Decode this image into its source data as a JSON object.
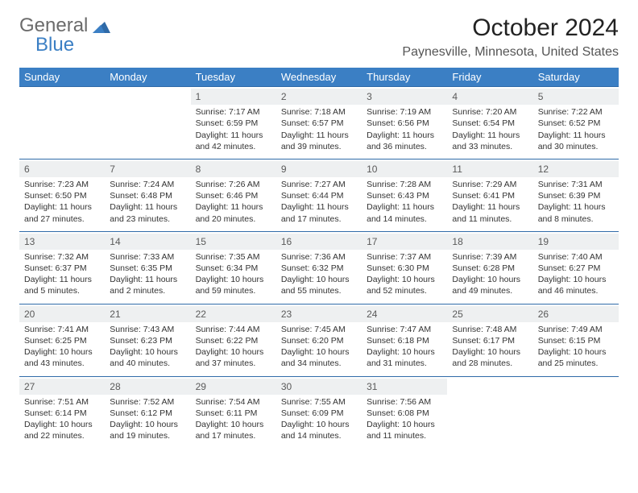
{
  "logo": {
    "text1": "General",
    "text2": "Blue"
  },
  "title": "October 2024",
  "location": "Paynesville, Minnesota, United States",
  "colors": {
    "header_bg": "#3b7fc4",
    "header_text": "#ffffff",
    "row_border": "#2f6aa8",
    "daynum_bg": "#eef0f1",
    "page_bg": "#ffffff",
    "logo_gray": "#6b6b6b",
    "logo_blue": "#3b7fc4"
  },
  "dayHeaders": [
    "Sunday",
    "Monday",
    "Tuesday",
    "Wednesday",
    "Thursday",
    "Friday",
    "Saturday"
  ],
  "weeks": [
    [
      null,
      null,
      {
        "num": "1",
        "sunrise": "Sunrise: 7:17 AM",
        "sunset": "Sunset: 6:59 PM",
        "day1": "Daylight: 11 hours",
        "day2": "and 42 minutes."
      },
      {
        "num": "2",
        "sunrise": "Sunrise: 7:18 AM",
        "sunset": "Sunset: 6:57 PM",
        "day1": "Daylight: 11 hours",
        "day2": "and 39 minutes."
      },
      {
        "num": "3",
        "sunrise": "Sunrise: 7:19 AM",
        "sunset": "Sunset: 6:56 PM",
        "day1": "Daylight: 11 hours",
        "day2": "and 36 minutes."
      },
      {
        "num": "4",
        "sunrise": "Sunrise: 7:20 AM",
        "sunset": "Sunset: 6:54 PM",
        "day1": "Daylight: 11 hours",
        "day2": "and 33 minutes."
      },
      {
        "num": "5",
        "sunrise": "Sunrise: 7:22 AM",
        "sunset": "Sunset: 6:52 PM",
        "day1": "Daylight: 11 hours",
        "day2": "and 30 minutes."
      }
    ],
    [
      {
        "num": "6",
        "sunrise": "Sunrise: 7:23 AM",
        "sunset": "Sunset: 6:50 PM",
        "day1": "Daylight: 11 hours",
        "day2": "and 27 minutes."
      },
      {
        "num": "7",
        "sunrise": "Sunrise: 7:24 AM",
        "sunset": "Sunset: 6:48 PM",
        "day1": "Daylight: 11 hours",
        "day2": "and 23 minutes."
      },
      {
        "num": "8",
        "sunrise": "Sunrise: 7:26 AM",
        "sunset": "Sunset: 6:46 PM",
        "day1": "Daylight: 11 hours",
        "day2": "and 20 minutes."
      },
      {
        "num": "9",
        "sunrise": "Sunrise: 7:27 AM",
        "sunset": "Sunset: 6:44 PM",
        "day1": "Daylight: 11 hours",
        "day2": "and 17 minutes."
      },
      {
        "num": "10",
        "sunrise": "Sunrise: 7:28 AM",
        "sunset": "Sunset: 6:43 PM",
        "day1": "Daylight: 11 hours",
        "day2": "and 14 minutes."
      },
      {
        "num": "11",
        "sunrise": "Sunrise: 7:29 AM",
        "sunset": "Sunset: 6:41 PM",
        "day1": "Daylight: 11 hours",
        "day2": "and 11 minutes."
      },
      {
        "num": "12",
        "sunrise": "Sunrise: 7:31 AM",
        "sunset": "Sunset: 6:39 PM",
        "day1": "Daylight: 11 hours",
        "day2": "and 8 minutes."
      }
    ],
    [
      {
        "num": "13",
        "sunrise": "Sunrise: 7:32 AM",
        "sunset": "Sunset: 6:37 PM",
        "day1": "Daylight: 11 hours",
        "day2": "and 5 minutes."
      },
      {
        "num": "14",
        "sunrise": "Sunrise: 7:33 AM",
        "sunset": "Sunset: 6:35 PM",
        "day1": "Daylight: 11 hours",
        "day2": "and 2 minutes."
      },
      {
        "num": "15",
        "sunrise": "Sunrise: 7:35 AM",
        "sunset": "Sunset: 6:34 PM",
        "day1": "Daylight: 10 hours",
        "day2": "and 59 minutes."
      },
      {
        "num": "16",
        "sunrise": "Sunrise: 7:36 AM",
        "sunset": "Sunset: 6:32 PM",
        "day1": "Daylight: 10 hours",
        "day2": "and 55 minutes."
      },
      {
        "num": "17",
        "sunrise": "Sunrise: 7:37 AM",
        "sunset": "Sunset: 6:30 PM",
        "day1": "Daylight: 10 hours",
        "day2": "and 52 minutes."
      },
      {
        "num": "18",
        "sunrise": "Sunrise: 7:39 AM",
        "sunset": "Sunset: 6:28 PM",
        "day1": "Daylight: 10 hours",
        "day2": "and 49 minutes."
      },
      {
        "num": "19",
        "sunrise": "Sunrise: 7:40 AM",
        "sunset": "Sunset: 6:27 PM",
        "day1": "Daylight: 10 hours",
        "day2": "and 46 minutes."
      }
    ],
    [
      {
        "num": "20",
        "sunrise": "Sunrise: 7:41 AM",
        "sunset": "Sunset: 6:25 PM",
        "day1": "Daylight: 10 hours",
        "day2": "and 43 minutes."
      },
      {
        "num": "21",
        "sunrise": "Sunrise: 7:43 AM",
        "sunset": "Sunset: 6:23 PM",
        "day1": "Daylight: 10 hours",
        "day2": "and 40 minutes."
      },
      {
        "num": "22",
        "sunrise": "Sunrise: 7:44 AM",
        "sunset": "Sunset: 6:22 PM",
        "day1": "Daylight: 10 hours",
        "day2": "and 37 minutes."
      },
      {
        "num": "23",
        "sunrise": "Sunrise: 7:45 AM",
        "sunset": "Sunset: 6:20 PM",
        "day1": "Daylight: 10 hours",
        "day2": "and 34 minutes."
      },
      {
        "num": "24",
        "sunrise": "Sunrise: 7:47 AM",
        "sunset": "Sunset: 6:18 PM",
        "day1": "Daylight: 10 hours",
        "day2": "and 31 minutes."
      },
      {
        "num": "25",
        "sunrise": "Sunrise: 7:48 AM",
        "sunset": "Sunset: 6:17 PM",
        "day1": "Daylight: 10 hours",
        "day2": "and 28 minutes."
      },
      {
        "num": "26",
        "sunrise": "Sunrise: 7:49 AM",
        "sunset": "Sunset: 6:15 PM",
        "day1": "Daylight: 10 hours",
        "day2": "and 25 minutes."
      }
    ],
    [
      {
        "num": "27",
        "sunrise": "Sunrise: 7:51 AM",
        "sunset": "Sunset: 6:14 PM",
        "day1": "Daylight: 10 hours",
        "day2": "and 22 minutes."
      },
      {
        "num": "28",
        "sunrise": "Sunrise: 7:52 AM",
        "sunset": "Sunset: 6:12 PM",
        "day1": "Daylight: 10 hours",
        "day2": "and 19 minutes."
      },
      {
        "num": "29",
        "sunrise": "Sunrise: 7:54 AM",
        "sunset": "Sunset: 6:11 PM",
        "day1": "Daylight: 10 hours",
        "day2": "and 17 minutes."
      },
      {
        "num": "30",
        "sunrise": "Sunrise: 7:55 AM",
        "sunset": "Sunset: 6:09 PM",
        "day1": "Daylight: 10 hours",
        "day2": "and 14 minutes."
      },
      {
        "num": "31",
        "sunrise": "Sunrise: 7:56 AM",
        "sunset": "Sunset: 6:08 PM",
        "day1": "Daylight: 10 hours",
        "day2": "and 11 minutes."
      },
      null,
      null
    ]
  ]
}
